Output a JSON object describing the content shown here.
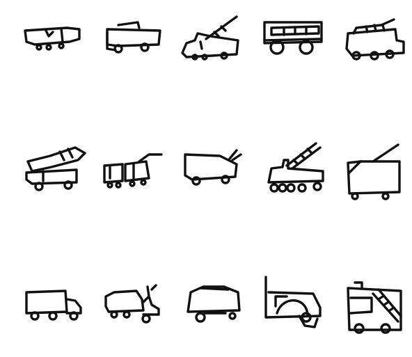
{
  "canvas": {
    "background": "#ffffff",
    "stroke_color": "#111111"
  },
  "rows": [
    {
      "name": "row-1",
      "items": [
        {
          "id": "tanker-truck"
        },
        {
          "id": "delivery-truck"
        },
        {
          "id": "ladder-truck"
        },
        {
          "id": "bus"
        },
        {
          "id": "fire-engine"
        }
      ]
    },
    {
      "name": "row-2",
      "items": [
        {
          "id": "hose-truck"
        },
        {
          "id": "two-car-tram"
        },
        {
          "id": "horn-truck"
        },
        {
          "id": "aerial-ladder-truck"
        },
        {
          "id": "crane-truck"
        }
      ]
    },
    {
      "name": "row-3",
      "items": [
        {
          "id": "box-truck"
        },
        {
          "id": "pump-truck"
        },
        {
          "id": "covered-wagon"
        },
        {
          "id": "tow-truck"
        },
        {
          "id": "framed-fire-truck"
        }
      ]
    }
  ]
}
